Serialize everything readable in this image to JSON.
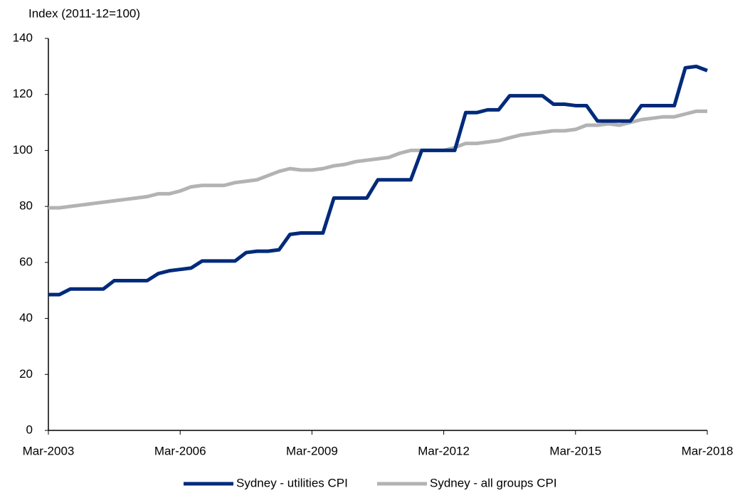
{
  "chart_data": {
    "type": "line",
    "y_axis_label": "Index (2011-12=100)",
    "categories": [
      "Mar-2003",
      null,
      null,
      null,
      null,
      null,
      null,
      null,
      null,
      null,
      null,
      null,
      "Mar-2006",
      null,
      null,
      null,
      null,
      null,
      null,
      null,
      null,
      null,
      null,
      null,
      "Mar-2009",
      null,
      null,
      null,
      null,
      null,
      null,
      null,
      null,
      null,
      null,
      null,
      "Mar-2012",
      null,
      null,
      null,
      null,
      null,
      null,
      null,
      null,
      null,
      null,
      null,
      "Mar-2015",
      null,
      null,
      null,
      null,
      null,
      null,
      null,
      null,
      null,
      null,
      null,
      "Mar-2018"
    ],
    "series": [
      {
        "name": "Sydney - utilities CPI",
        "color": "#002a7a",
        "values": [
          48.5,
          48.5,
          50.5,
          50.5,
          50.5,
          50.5,
          53.5,
          53.5,
          53.5,
          53.5,
          56,
          57,
          57.5,
          58,
          60.5,
          60.5,
          60.5,
          60.5,
          63.5,
          64,
          64,
          64.5,
          70,
          70.5,
          70.5,
          70.5,
          83,
          83,
          83,
          83,
          89.5,
          89.5,
          89.5,
          89.5,
          100,
          100,
          100,
          100,
          113.5,
          113.5,
          114.5,
          114.5,
          119.5,
          119.5,
          119.5,
          119.5,
          116.5,
          116.5,
          116,
          116,
          110.5,
          110.5,
          110.5,
          110.5,
          116,
          116,
          116,
          116,
          129.5,
          130,
          128.5
        ]
      },
      {
        "name": "Sydney - all groups CPI",
        "color": "#b3b3b3",
        "values": [
          79.5,
          79.5,
          80,
          80.5,
          81,
          81.5,
          82,
          82.5,
          83,
          83.5,
          84.5,
          84.5,
          85.5,
          87,
          87.5,
          87.5,
          87.5,
          88.5,
          89,
          89.5,
          91,
          92.5,
          93.5,
          93,
          93,
          93.5,
          94.5,
          95,
          96,
          96.5,
          97,
          97.5,
          99,
          100,
          100,
          100,
          100,
          101,
          102.5,
          102.5,
          103,
          103.5,
          104.5,
          105.5,
          106,
          106.5,
          107,
          107,
          107.5,
          109,
          109,
          109.5,
          109,
          110,
          111,
          111.5,
          112,
          112,
          113,
          114,
          114
        ]
      }
    ],
    "ylim": [
      0,
      140
    ],
    "yticks": [
      0,
      20,
      40,
      60,
      80,
      100,
      120,
      140
    ],
    "grid": false,
    "legend": "bottom"
  }
}
